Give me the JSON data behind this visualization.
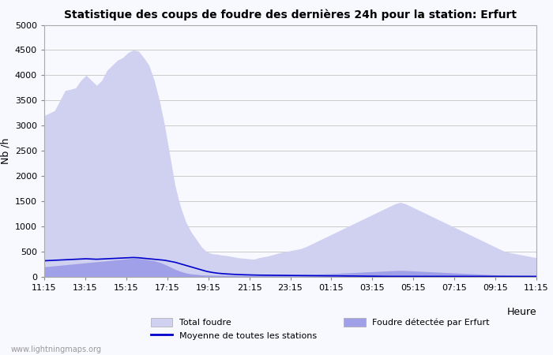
{
  "title": "Statistique des coups de foudre des dernières 24h pour la station: Erfurt",
  "xlabel": "Heure",
  "ylabel": "Nb /h",
  "ylim": [
    0,
    5000
  ],
  "background_color": "#f8f8ff",
  "plot_bg_color": "#f8f8ff",
  "grid_color": "#cccccc",
  "x_labels": [
    "11:15",
    "13:15",
    "15:15",
    "17:15",
    "19:15",
    "21:15",
    "23:15",
    "01:15",
    "03:15",
    "05:15",
    "07:15",
    "09:15",
    "11:15"
  ],
  "total_foudre": [
    3200,
    3250,
    3300,
    3500,
    3700,
    3720,
    3750,
    3900,
    4000,
    3900,
    3800,
    3900,
    4100,
    4200,
    4300,
    4350,
    4450,
    4500,
    4480,
    4350,
    4200,
    3900,
    3500,
    3000,
    2400,
    1800,
    1400,
    1100,
    900,
    750,
    600,
    500,
    460,
    450,
    430,
    420,
    400,
    380,
    370,
    360,
    350,
    380,
    400,
    420,
    450,
    480,
    500,
    520,
    540,
    560,
    600,
    650,
    700,
    750,
    800,
    850,
    900,
    950,
    1000,
    1050,
    1100,
    1150,
    1200,
    1250,
    1300,
    1350,
    1400,
    1450,
    1480,
    1450,
    1400,
    1350,
    1300,
    1250,
    1200,
    1150,
    1100,
    1050,
    1000,
    950,
    900,
    850,
    800,
    750,
    700,
    650,
    600,
    550,
    500,
    480,
    460,
    440,
    420,
    400,
    380
  ],
  "foudre_erfurt": [
    200,
    210,
    220,
    230,
    240,
    250,
    260,
    270,
    280,
    290,
    300,
    310,
    320,
    330,
    340,
    350,
    360,
    370,
    365,
    355,
    340,
    320,
    290,
    250,
    200,
    150,
    110,
    80,
    60,
    50,
    40,
    35,
    33,
    32,
    31,
    30,
    29,
    28,
    27,
    26,
    25,
    26,
    28,
    30,
    32,
    34,
    36,
    38,
    40,
    42,
    45,
    48,
    52,
    56,
    60,
    65,
    70,
    75,
    80,
    85,
    90,
    95,
    100,
    105,
    110,
    115,
    120,
    125,
    128,
    125,
    120,
    115,
    110,
    105,
    100,
    95,
    90,
    85,
    80,
    75,
    70,
    65,
    60,
    55,
    50,
    45,
    40,
    35,
    30,
    28,
    26,
    24,
    22,
    20,
    18
  ],
  "moyenne": [
    320,
    325,
    330,
    335,
    340,
    345,
    350,
    355,
    360,
    355,
    350,
    355,
    360,
    365,
    370,
    375,
    380,
    385,
    380,
    370,
    360,
    350,
    340,
    330,
    310,
    290,
    260,
    230,
    200,
    170,
    140,
    110,
    90,
    75,
    65,
    58,
    52,
    47,
    43,
    40,
    37,
    35,
    34,
    33,
    32,
    31,
    30,
    29,
    28,
    27,
    26,
    25,
    24,
    23,
    22,
    21,
    20,
    19,
    18,
    17,
    16,
    15,
    14,
    13,
    12,
    11,
    10,
    10,
    10,
    10,
    10,
    10,
    10,
    10,
    10,
    10,
    10,
    10,
    10,
    10,
    10,
    10,
    10,
    10,
    10,
    10,
    10,
    10,
    10,
    10,
    10,
    10,
    10,
    10,
    10
  ],
  "total_foudre_color": "#d0d0f0",
  "foudre_erfurt_color": "#a0a0e8",
  "moyenne_color": "#0000cc",
  "watermark": "www.lightningmaps.org",
  "legend_total": "Total foudre",
  "legend_erfurt": "Foudre détectée par Erfurt",
  "legend_moyenne": "Moyenne de toutes les stations"
}
